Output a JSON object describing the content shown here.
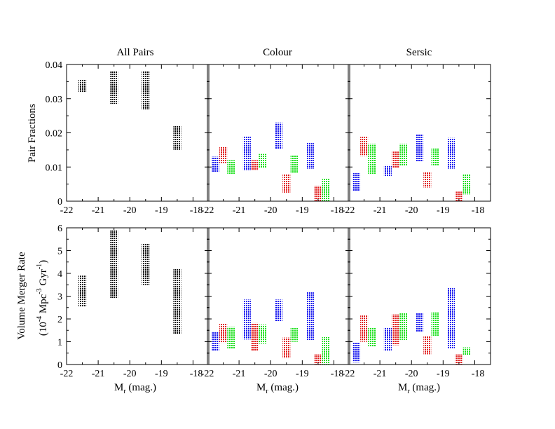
{
  "colors": {
    "black": "#000000",
    "blue": "#1010ee",
    "red": "#e01818",
    "green": "#18e018"
  },
  "panel_titles": [
    "All Pairs",
    "Colour",
    "Sersic"
  ],
  "row_labels": {
    "top": "Pair Fractions",
    "bottom_line1": "Volume Merger Rate",
    "bottom_line2": "(10",
    "bottom_exp1": "-4",
    "bottom_mid": " Mpc",
    "bottom_exp2": "-3",
    "bottom_mid2": " Gyr",
    "bottom_exp3": "-1",
    "bottom_end": ")"
  },
  "xlabel": {
    "main": "M",
    "sub": "r",
    "rest": " (mag.)"
  },
  "chart_data": [
    {
      "type": "bar",
      "title": "All Pairs",
      "ylabel": "Pair Fractions",
      "xlabel": "M_r (mag.)",
      "xlim": [
        -22,
        -17.5
      ],
      "ylim": [
        0,
        0.04
      ],
      "xticks": [
        "-22",
        "-21",
        "-20",
        "-19",
        "-18"
      ],
      "yticks": [
        "0",
        "0.01",
        "0.02",
        "0.03",
        "0.04"
      ],
      "series": [
        {
          "name": "All",
          "color": "black",
          "boxes": [
            {
              "x": -21.5,
              "lo": 0.032,
              "hi": 0.0355
            },
            {
              "x": -20.5,
              "lo": 0.0285,
              "hi": 0.038
            },
            {
              "x": -19.5,
              "lo": 0.0268,
              "hi": 0.038
            },
            {
              "x": -18.5,
              "lo": 0.015,
              "hi": 0.022
            }
          ]
        }
      ]
    },
    {
      "type": "bar",
      "title": "Colour",
      "ylabel": "Pair Fractions",
      "xlabel": "M_r (mag.)",
      "xlim": [
        -22,
        -17.5
      ],
      "ylim": [
        0,
        0.04
      ],
      "xticks": [
        "-22",
        "-21",
        "-20",
        "-19",
        "-18"
      ],
      "series": [
        {
          "name": "blue",
          "color": "blue",
          "boxes": [
            {
              "x": -21.75,
              "lo": 0.0085,
              "hi": 0.013
            },
            {
              "x": -20.75,
              "lo": 0.009,
              "hi": 0.019
            },
            {
              "x": -19.75,
              "lo": 0.0152,
              "hi": 0.023
            },
            {
              "x": -18.75,
              "lo": 0.0095,
              "hi": 0.017
            }
          ]
        },
        {
          "name": "red",
          "color": "red",
          "boxes": [
            {
              "x": -21.5,
              "lo": 0.0112,
              "hi": 0.016
            },
            {
              "x": -20.5,
              "lo": 0.009,
              "hi": 0.012
            },
            {
              "x": -19.5,
              "lo": 0.0025,
              "hi": 0.0078
            },
            {
              "x": -18.5,
              "lo": 0,
              "hi": 0.0045
            }
          ]
        },
        {
          "name": "green",
          "color": "green",
          "boxes": [
            {
              "x": -21.25,
              "lo": 0.008,
              "hi": 0.012
            },
            {
              "x": -20.25,
              "lo": 0.0098,
              "hi": 0.0138
            },
            {
              "x": -19.25,
              "lo": 0.0082,
              "hi": 0.0135
            },
            {
              "x": -18.25,
              "lo": 0,
              "hi": 0.0065
            }
          ]
        }
      ]
    },
    {
      "type": "bar",
      "title": "Sersic",
      "ylabel": "Pair Fractions",
      "xlabel": "M_r (mag.)",
      "xlim": [
        -22,
        -17.5
      ],
      "ylim": [
        0,
        0.04
      ],
      "xticks": [
        "-22",
        "-21",
        "-20",
        "-19",
        "-18"
      ],
      "series": [
        {
          "name": "blue",
          "color": "blue",
          "boxes": [
            {
              "x": -21.75,
              "lo": 0.003,
              "hi": 0.0082
            },
            {
              "x": -20.75,
              "lo": 0.0072,
              "hi": 0.0105
            },
            {
              "x": -19.75,
              "lo": 0.0115,
              "hi": 0.0195
            },
            {
              "x": -18.75,
              "lo": 0.0095,
              "hi": 0.0185
            }
          ]
        },
        {
          "name": "red",
          "color": "red",
          "boxes": [
            {
              "x": -21.5,
              "lo": 0.0132,
              "hi": 0.0188
            },
            {
              "x": -20.5,
              "lo": 0.0098,
              "hi": 0.0145
            },
            {
              "x": -19.5,
              "lo": 0.004,
              "hi": 0.0085
            },
            {
              "x": -18.5,
              "lo": 0,
              "hi": 0.0028
            }
          ]
        },
        {
          "name": "green",
          "color": "green",
          "boxes": [
            {
              "x": -21.25,
              "lo": 0.008,
              "hi": 0.0168
            },
            {
              "x": -20.25,
              "lo": 0.0105,
              "hi": 0.0168
            },
            {
              "x": -19.25,
              "lo": 0.0105,
              "hi": 0.0155
            },
            {
              "x": -18.25,
              "lo": 0.002,
              "hi": 0.008
            }
          ]
        }
      ]
    },
    {
      "type": "bar",
      "title": "All Pairs",
      "ylabel": "Volume Merger Rate (10^-4 Mpc^-3 Gyr^-1)",
      "xlabel": "M_r (mag.)",
      "xlim": [
        -22,
        -17.5
      ],
      "ylim": [
        0,
        6
      ],
      "xticks": [
        "-22",
        "-21",
        "-20",
        "-19",
        "-18"
      ],
      "yticks": [
        "0",
        "1",
        "2",
        "3",
        "4",
        "5",
        "6"
      ],
      "series": [
        {
          "name": "All",
          "color": "black",
          "boxes": [
            {
              "x": -21.5,
              "lo": 2.55,
              "hi": 3.9
            },
            {
              "x": -20.5,
              "lo": 2.92,
              "hi": 5.9
            },
            {
              "x": -19.5,
              "lo": 3.5,
              "hi": 5.3
            },
            {
              "x": -18.5,
              "lo": 1.35,
              "hi": 4.2
            }
          ]
        }
      ]
    },
    {
      "type": "bar",
      "title": "Colour",
      "ylabel": "Volume Merger Rate",
      "xlabel": "M_r (mag.)",
      "xlim": [
        -22,
        -17.5
      ],
      "ylim": [
        0,
        6
      ],
      "xticks": [
        "-22",
        "-21",
        "-20",
        "-19",
        "-18"
      ],
      "series": [
        {
          "name": "blue",
          "color": "blue",
          "boxes": [
            {
              "x": -21.75,
              "lo": 0.6,
              "hi": 1.45
            },
            {
              "x": -20.75,
              "lo": 1.1,
              "hi": 2.85
            },
            {
              "x": -19.75,
              "lo": 1.9,
              "hi": 2.85
            },
            {
              "x": -18.75,
              "lo": 1.05,
              "hi": 3.2
            }
          ]
        },
        {
          "name": "red",
          "color": "red",
          "boxes": [
            {
              "x": -21.5,
              "lo": 0.95,
              "hi": 1.8
            },
            {
              "x": -20.5,
              "lo": 0.6,
              "hi": 1.82
            },
            {
              "x": -19.5,
              "lo": 0.28,
              "hi": 1.18
            },
            {
              "x": -18.5,
              "lo": 0,
              "hi": 0.45
            }
          ]
        },
        {
          "name": "green",
          "color": "green",
          "boxes": [
            {
              "x": -21.25,
              "lo": 0.7,
              "hi": 1.65
            },
            {
              "x": -20.25,
              "lo": 0.92,
              "hi": 1.75
            },
            {
              "x": -19.25,
              "lo": 1.0,
              "hi": 1.6
            },
            {
              "x": -18.25,
              "lo": 0,
              "hi": 1.2
            }
          ]
        }
      ]
    },
    {
      "type": "bar",
      "title": "Sersic",
      "ylabel": "Volume Merger Rate",
      "xlabel": "M_r (mag.)",
      "xlim": [
        -22,
        -17.5
      ],
      "ylim": [
        0,
        6
      ],
      "xticks": [
        "-22",
        "-21",
        "-20",
        "-19",
        "-18"
      ],
      "series": [
        {
          "name": "blue",
          "color": "blue",
          "boxes": [
            {
              "x": -21.75,
              "lo": 0.1,
              "hi": 0.95
            },
            {
              "x": -20.75,
              "lo": 0.6,
              "hi": 1.62
            },
            {
              "x": -19.75,
              "lo": 1.45,
              "hi": 2.25
            },
            {
              "x": -18.75,
              "lo": 0.72,
              "hi": 3.35
            }
          ]
        },
        {
          "name": "red",
          "color": "red",
          "boxes": [
            {
              "x": -21.5,
              "lo": 1.0,
              "hi": 2.15
            },
            {
              "x": -20.5,
              "lo": 0.85,
              "hi": 2.2
            },
            {
              "x": -19.5,
              "lo": 0.45,
              "hi": 1.25
            },
            {
              "x": -18.5,
              "lo": 0,
              "hi": 0.45
            }
          ]
        },
        {
          "name": "green",
          "color": "green",
          "boxes": [
            {
              "x": -21.25,
              "lo": 0.8,
              "hi": 1.6
            },
            {
              "x": -20.25,
              "lo": 1.08,
              "hi": 2.25
            },
            {
              "x": -19.25,
              "lo": 1.25,
              "hi": 2.3
            },
            {
              "x": -18.25,
              "lo": 0.4,
              "hi": 0.75
            }
          ]
        }
      ]
    }
  ]
}
